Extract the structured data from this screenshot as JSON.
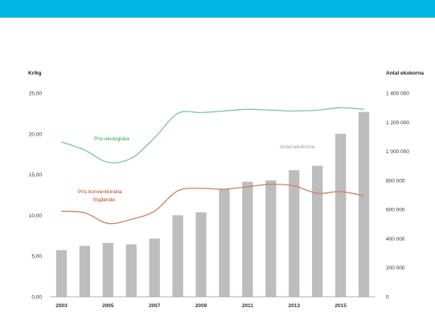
{
  "colors": {
    "top_bar": "#00b7e6",
    "bars": "#bdbdbd",
    "eco_line": "#7fc3a2",
    "conv_line": "#c9826a",
    "eco_label": "#3a9a50",
    "conv_label": "#b8421f",
    "bar_label": "#9a9a9a"
  },
  "chart_data": {
    "type": "bar",
    "y_left_title": "Kr/kg",
    "y_right_title": "Antal ekokorna",
    "x_tick_labels": [
      "2003",
      "2005",
      "2007",
      "2009",
      "2011",
      "2013",
      "2015"
    ],
    "y_left_ticks": [
      "25,00",
      "20,00",
      "15,00",
      "10,00",
      "5,00",
      "0,00"
    ],
    "y_right_ticks": [
      "1 400 000",
      "1 200 000",
      "1 000 000",
      "800 000",
      "600 000",
      "400 000",
      "200 000",
      "0"
    ],
    "ylim_left": [
      0,
      25
    ],
    "ylim_right": [
      0,
      1400000
    ],
    "categories": [
      "2003",
      "2004",
      "2005",
      "2006",
      "2007",
      "2008",
      "2009",
      "2010",
      "2011",
      "2012",
      "2013",
      "2014",
      "2015",
      "2016"
    ],
    "series": [
      {
        "name": "Antal ekokorna",
        "kind": "bar",
        "axis": "right",
        "values": [
          320000,
          350000,
          370000,
          360000,
          400000,
          560000,
          580000,
          740000,
          790000,
          800000,
          870000,
          900000,
          1120000,
          1270000
        ]
      },
      {
        "name": "Pris ekologiska",
        "kind": "line",
        "axis": "left",
        "values": [
          19.0,
          18.0,
          16.5,
          17.0,
          19.5,
          22.5,
          22.6,
          22.8,
          23.0,
          22.9,
          22.8,
          22.9,
          23.2,
          23.0
        ]
      },
      {
        "name": "Pris konventionella frigående",
        "kind": "line",
        "axis": "left",
        "values": [
          10.5,
          10.3,
          9.0,
          9.5,
          10.5,
          13.0,
          13.3,
          13.2,
          13.5,
          13.8,
          13.6,
          12.7,
          12.9,
          12.4
        ]
      }
    ],
    "annotations": {
      "eco": "Pris ekologiska",
      "conv_line1": "Pris konventionella",
      "conv_line2": "frigående",
      "bars": "Antal ekokorna"
    }
  }
}
